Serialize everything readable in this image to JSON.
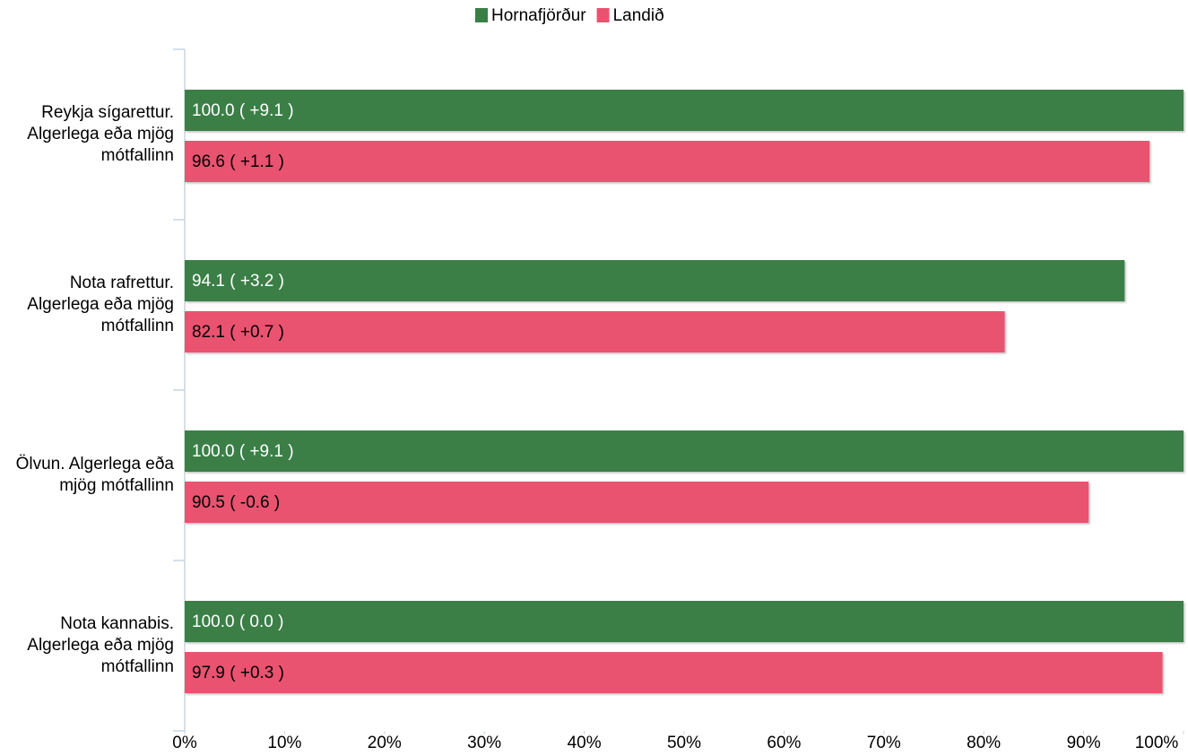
{
  "chart_data": {
    "type": "hbar",
    "categories": [
      "Reykja sígarettur. Algerlega eða mjög mótfallinn",
      "Nota rafrettur. Algerlega eða mjög mótfallinn",
      "Ölvun. Algerlega eða mjög mótfallinn",
      "Nota kannabis. Algerlega eða mjög mótfallinn"
    ],
    "series": [
      {
        "name": "Hornafjörður",
        "color": "#3a7f46",
        "label_color": "#ffffff",
        "values": [
          100.0,
          94.1,
          100.0,
          100.0
        ],
        "value_labels": [
          "100.0 ( +9.1 )",
          "94.1 ( +3.2 )",
          "100.0 ( +9.1 )",
          "100.0 ( 0.0 )"
        ]
      },
      {
        "name": "Landið",
        "color": "#e9536f",
        "label_color": "#000000",
        "values": [
          96.6,
          82.1,
          90.5,
          97.9
        ],
        "value_labels": [
          "96.6 ( +1.1 )",
          "82.1 ( +0.7 )",
          "90.5 ( -0.6 )",
          "97.9 ( +0.3 )"
        ]
      }
    ],
    "xlim": [
      0,
      100
    ],
    "xticks": [
      {
        "value": 0,
        "label": "0%"
      },
      {
        "value": 10,
        "label": "10%"
      },
      {
        "value": 20,
        "label": "20%"
      },
      {
        "value": 30,
        "label": "30%"
      },
      {
        "value": 40,
        "label": "40%"
      },
      {
        "value": 50,
        "label": "50%"
      },
      {
        "value": 60,
        "label": "60%"
      },
      {
        "value": 70,
        "label": "70%"
      },
      {
        "value": 80,
        "label": "80%"
      },
      {
        "value": 90,
        "label": "90%"
      },
      {
        "value": 100,
        "label": "100%"
      }
    ],
    "legend": "top"
  }
}
